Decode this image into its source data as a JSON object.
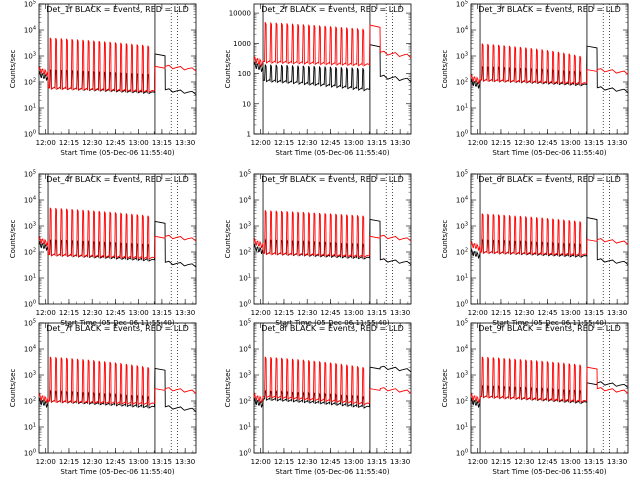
{
  "chart_data": [
    {
      "type": "line",
      "detector": "Det_1f",
      "title": "Det_1f BLACK = Events, RED = LLD",
      "xlabel": "Start Time (05-Dec-06 11:55:40)",
      "ylabel": "Counts/sec",
      "yscale": "log",
      "ylim": [
        1,
        100000
      ],
      "ytick_labels": [
        "10^0",
        "10^1",
        "10^2",
        "10^3",
        "10^4",
        "10^5"
      ],
      "xtick_labels": [
        "12:00",
        "12:15",
        "12:30",
        "12:45",
        "13:00",
        "13:15",
        "13:30"
      ],
      "xlim": [
        "11:55:40",
        "13:37"
      ],
      "series": [
        {
          "color": "#000000",
          "pre": 200,
          "level": [
            60,
            40
          ],
          "peak": [
            300,
            200
          ],
          "post": 50
        },
        {
          "color": "#ff0000",
          "pre": 300,
          "level": [
            60,
            45
          ],
          "peak": [
            5000,
            2500
          ],
          "post": 400
        }
      ]
    },
    {
      "type": "line",
      "detector": "Det_2f",
      "title": "Det_2f BLACK = Events, RED = LLD",
      "xlabel": "Start Time (05-Dec-06 11:55:40)",
      "ylabel": "Counts/sec",
      "yscale": "log",
      "ylim": [
        1,
        20000
      ],
      "ytick_labels": [
        "1",
        "10",
        "100",
        "1000",
        "10000"
      ],
      "xtick_labels": [
        "12:00",
        "12:15",
        "12:30",
        "12:45",
        "13:00",
        "13:15",
        "13:30"
      ],
      "xlim": [
        "11:55:40",
        "13:37"
      ],
      "series": [
        {
          "color": "#000000",
          "pre": 200,
          "level": [
            60,
            30
          ],
          "peak": [
            200,
            150
          ],
          "post": 80
        },
        {
          "color": "#ff0000",
          "pre": 300,
          "level": [
            250,
            200
          ],
          "peak": [
            5000,
            3000
          ],
          "post": 500
        }
      ]
    },
    {
      "type": "line",
      "detector": "Det_3f",
      "title": "Det_3f BLACK = Events, RED = LLD",
      "xlabel": "Start Time (05-Dec-06 11:55:40)",
      "ylabel": "Counts/sec",
      "yscale": "log",
      "ylim": [
        1,
        100000
      ],
      "ytick_labels": [
        "10^0",
        "10^1",
        "10^2",
        "10^3",
        "10^4",
        "10^5"
      ],
      "xtick_labels": [
        "12:00",
        "12:15",
        "12:30",
        "12:45",
        "13:00",
        "13:15",
        "13:30"
      ],
      "xlim": [
        "11:55:40",
        "13:37"
      ],
      "series": [
        {
          "color": "#000000",
          "pre": 100,
          "level": [
            120,
            80
          ],
          "peak": [
            400,
            250
          ],
          "post": 60
        },
        {
          "color": "#ff0000",
          "pre": 150,
          "level": [
            120,
            90
          ],
          "peak": [
            3000,
            1000
          ],
          "post": 300
        }
      ]
    },
    {
      "type": "line",
      "detector": "Det_4f",
      "title": "Det_4f BLACK = Events, RED = LLD",
      "xlabel": "Start Time (05-Dec-06 11:55:40)",
      "ylabel": "Counts/sec",
      "yscale": "log",
      "ylim": [
        1,
        100000
      ],
      "ytick_labels": [
        "10^0",
        "10^1",
        "10^2",
        "10^3",
        "10^4",
        "10^5"
      ],
      "xtick_labels": [
        "12:00",
        "12:15",
        "12:30",
        "12:45",
        "13:00",
        "13:15",
        "13:30"
      ],
      "xlim": [
        "11:55:40",
        "13:37"
      ],
      "series": [
        {
          "color": "#000000",
          "pre": 200,
          "level": [
            80,
            50
          ],
          "peak": [
            300,
            200
          ],
          "post": 40
        },
        {
          "color": "#ff0000",
          "pre": 300,
          "level": [
            80,
            60
          ],
          "peak": [
            5000,
            2500
          ],
          "post": 400
        }
      ]
    },
    {
      "type": "line",
      "detector": "Det_5f",
      "title": "Det_5f BLACK = Events, RED = LLD",
      "xlabel": "Start Time (05-Dec-06 11:55:40)",
      "ylabel": "Counts/sec",
      "yscale": "log",
      "ylim": [
        1,
        100000
      ],
      "ytick_labels": [
        "10^0",
        "10^1",
        "10^2",
        "10^3",
        "10^4",
        "10^5"
      ],
      "xtick_labels": [
        "12:00",
        "12:15",
        "12:30",
        "12:45",
        "13:00",
        "13:15",
        "13:30"
      ],
      "xlim": [
        "11:55:40",
        "13:37"
      ],
      "series": [
        {
          "color": "#000000",
          "pre": 150,
          "level": [
            90,
            60
          ],
          "peak": [
            300,
            200
          ],
          "post": 50
        },
        {
          "color": "#ff0000",
          "pre": 250,
          "level": [
            90,
            70
          ],
          "peak": [
            4000,
            2500
          ],
          "post": 400
        }
      ]
    },
    {
      "type": "line",
      "detector": "Det_6f",
      "title": "Det_6f BLACK = Events, RED = LLD",
      "xlabel": "Start Time (05-Dec-06 11:55:40)",
      "ylabel": "Counts/sec",
      "yscale": "log",
      "ylim": [
        1,
        100000
      ],
      "ytick_labels": [
        "10^0",
        "10^1",
        "10^2",
        "10^3",
        "10^4",
        "10^5"
      ],
      "xtick_labels": [
        "12:00",
        "12:15",
        "12:30",
        "12:45",
        "13:00",
        "13:15",
        "13:30"
      ],
      "xlim": [
        "11:55:40",
        "13:37"
      ],
      "series": [
        {
          "color": "#000000",
          "pre": 100,
          "level": [
            100,
            70
          ],
          "peak": [
            300,
            200
          ],
          "post": 50
        },
        {
          "color": "#ff0000",
          "pre": 200,
          "level": [
            100,
            80
          ],
          "peak": [
            3000,
            1500
          ],
          "post": 300
        }
      ]
    },
    {
      "type": "line",
      "detector": "Det_7f",
      "title": "Det_7f BLACK = Events, RED = LLD",
      "xlabel": "Start Time (05-Dec-06 11:55:40)",
      "ylabel": "Counts/sec",
      "yscale": "log",
      "ylim": [
        1,
        100000
      ],
      "ytick_labels": [
        "10^0",
        "10^1",
        "10^2",
        "10^3",
        "10^4",
        "10^5"
      ],
      "xtick_labels": [
        "12:00",
        "12:15",
        "12:30",
        "12:45",
        "13:00",
        "13:15",
        "13:30"
      ],
      "xlim": [
        "11:55:40",
        "13:37"
      ],
      "series": [
        {
          "color": "#000000",
          "pre": 100,
          "level": [
            100,
            60
          ],
          "peak": [
            250,
            150
          ],
          "post": 60
        },
        {
          "color": "#ff0000",
          "pre": 150,
          "level": [
            100,
            80
          ],
          "peak": [
            5000,
            2000
          ],
          "post": 300
        }
      ]
    },
    {
      "type": "line",
      "detector": "Det_8f",
      "title": "Det_8f BLACK = Events, RED = LLD",
      "xlabel": "Start Time (05-Dec-06 11:55:40)",
      "ylabel": "Counts/sec",
      "yscale": "log",
      "ylim": [
        1,
        100000
      ],
      "ytick_labels": [
        "10^0",
        "10^1",
        "10^2",
        "10^3",
        "10^4",
        "10^5"
      ],
      "xtick_labels": [
        "12:00",
        "12:15",
        "12:30",
        "12:45",
        "13:00",
        "13:15",
        "13:30"
      ],
      "xlim": [
        "11:55:40",
        "13:37"
      ],
      "series": [
        {
          "color": "#000000",
          "pre": 100,
          "level": [
            120,
            60
          ],
          "peak": [
            250,
            150
          ],
          "post": 2000
        },
        {
          "color": "#ff0000",
          "pre": 150,
          "level": [
            150,
            80
          ],
          "peak": [
            5000,
            2000
          ],
          "post": 300
        }
      ]
    },
    {
      "type": "line",
      "detector": "Det_9f",
      "title": "Det_9f BLACK = Events, RED = LLD",
      "xlabel": "Start Time (05-Dec-06 11:55:40)",
      "ylabel": "Counts/sec",
      "yscale": "log",
      "ylim": [
        1,
        100000
      ],
      "ytick_labels": [
        "10^0",
        "10^1",
        "10^2",
        "10^3",
        "10^4",
        "10^5"
      ],
      "xtick_labels": [
        "12:00",
        "12:15",
        "12:30",
        "12:45",
        "13:00",
        "13:15",
        "13:30"
      ],
      "xlim": [
        "11:55:40",
        "13:37"
      ],
      "series": [
        {
          "color": "#000000",
          "pre": 100,
          "level": [
            150,
            90
          ],
          "peak": [
            400,
            250
          ],
          "post": 500
        },
        {
          "color": "#ff0000",
          "pre": 150,
          "level": [
            150,
            100
          ],
          "peak": [
            5000,
            2500
          ],
          "post": 300
        }
      ]
    }
  ]
}
